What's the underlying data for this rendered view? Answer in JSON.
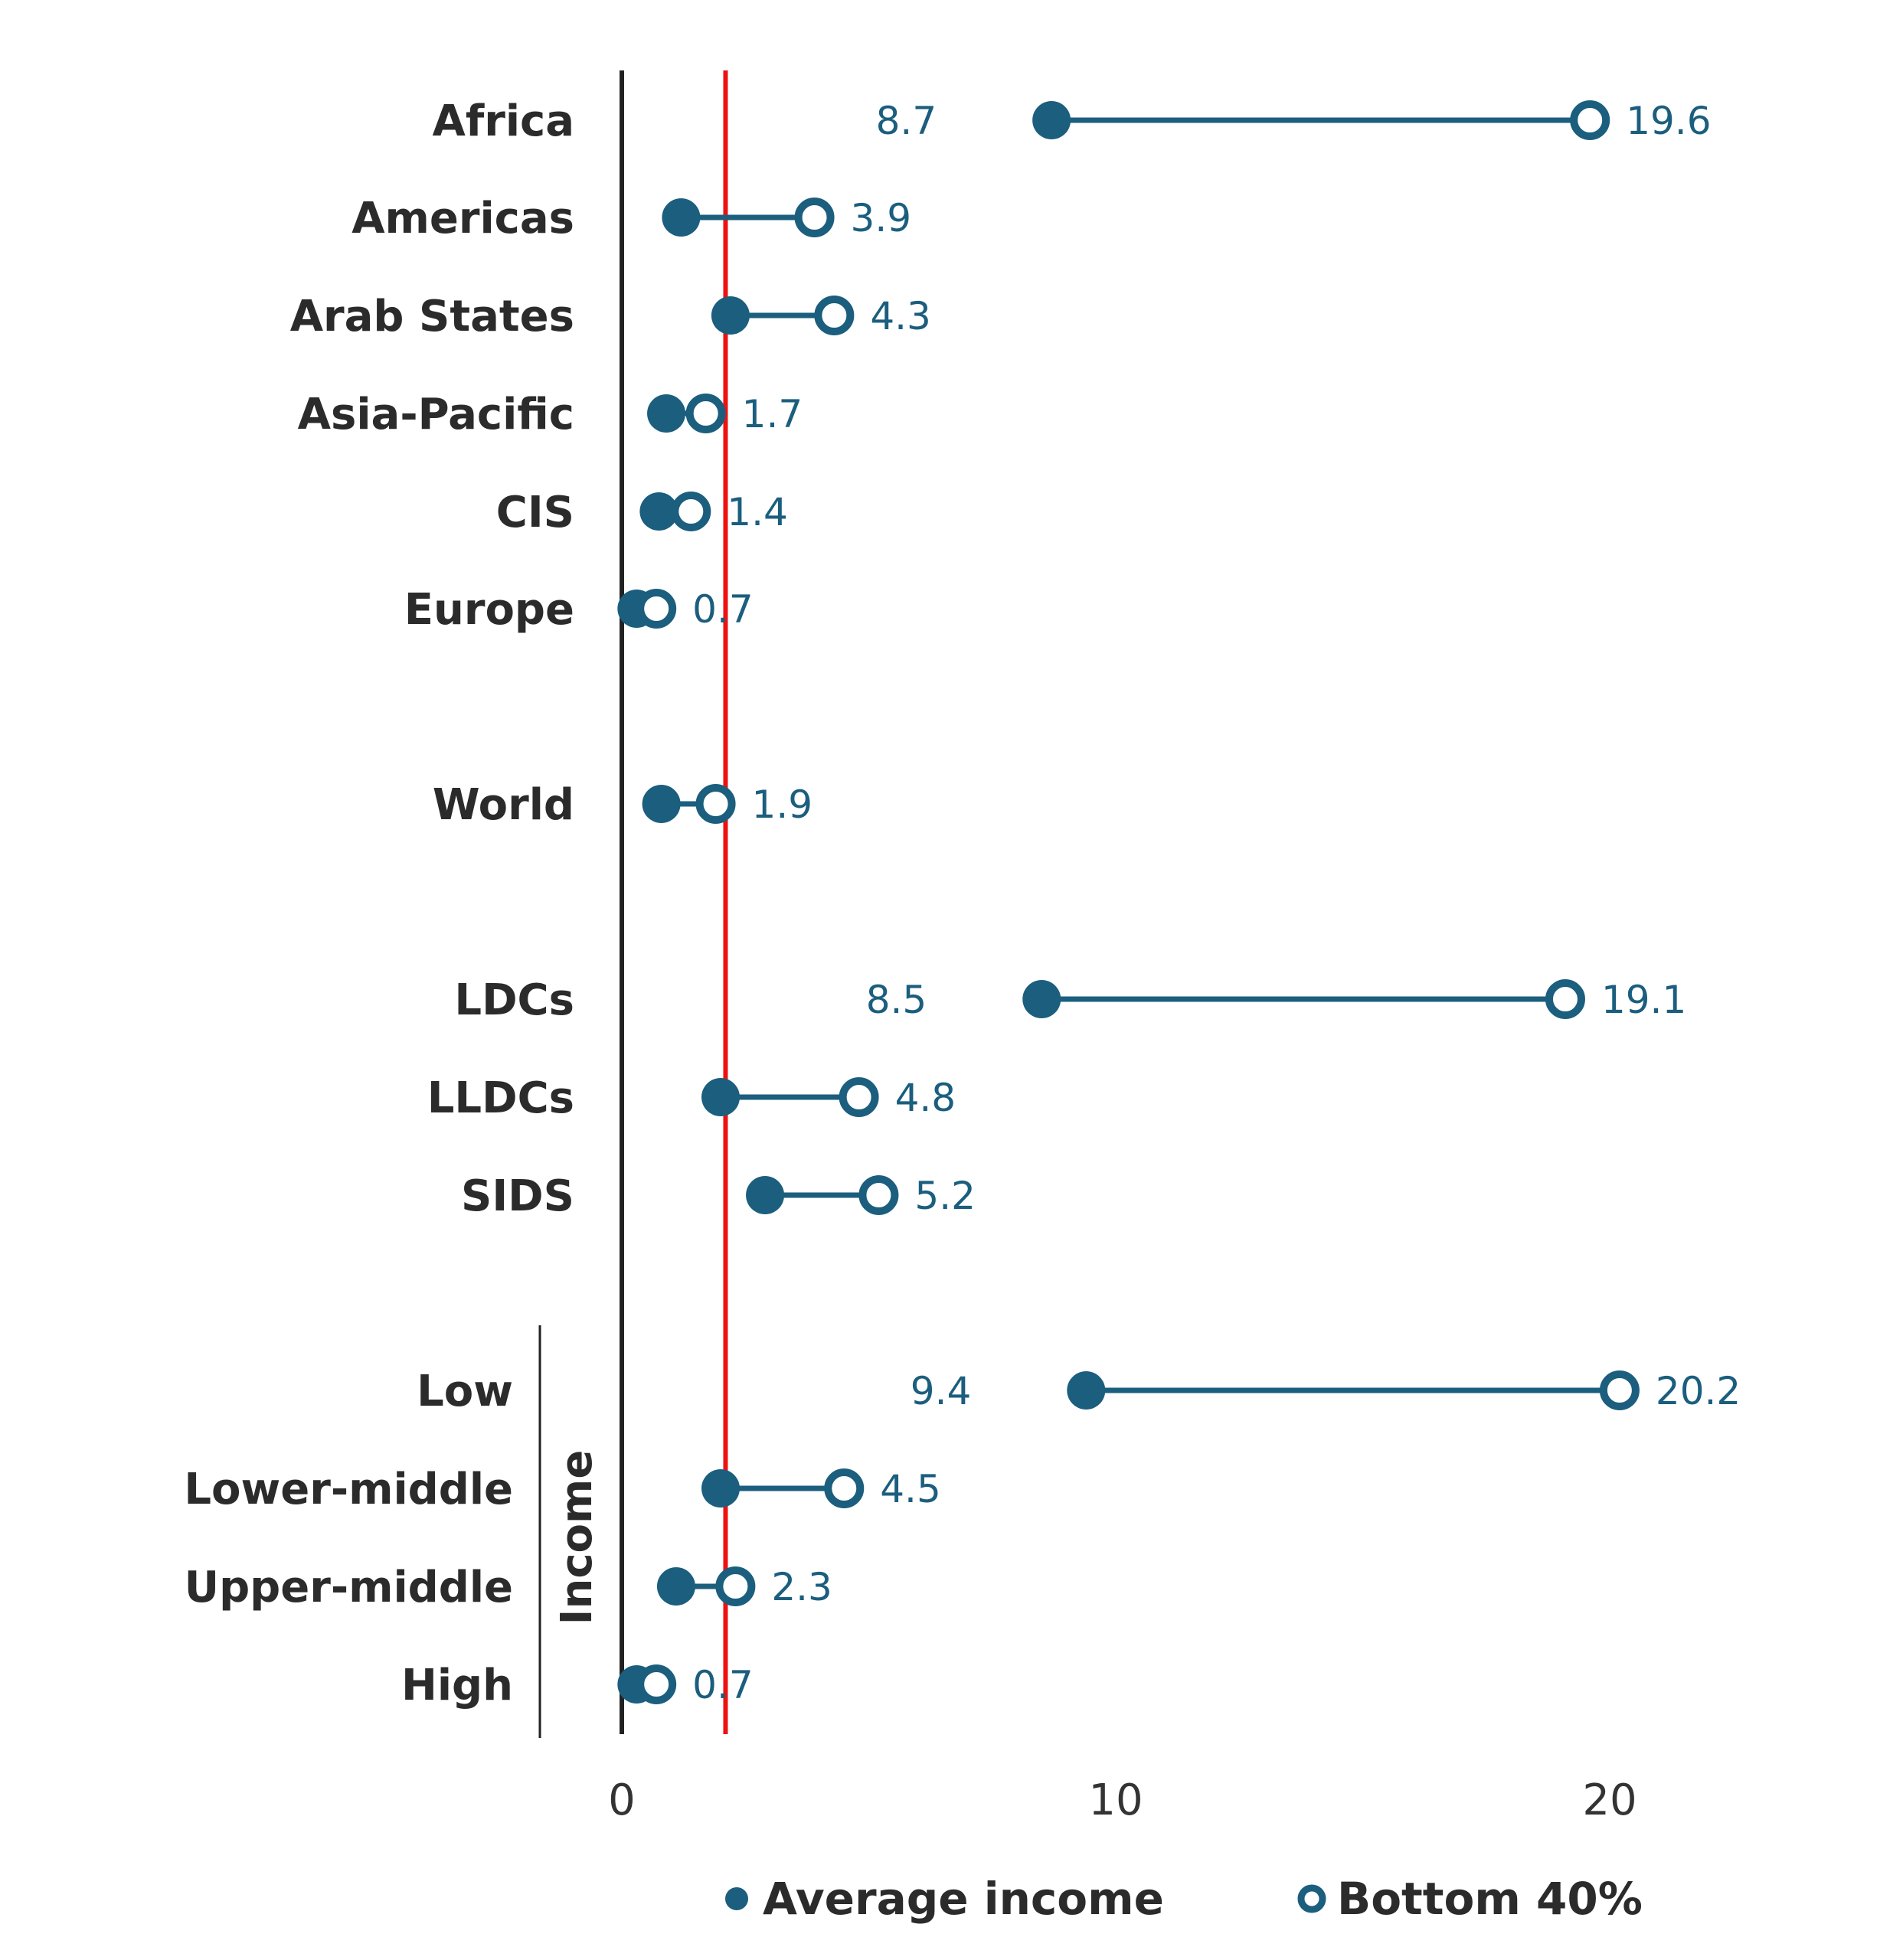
{
  "chart_data": {
    "type": "dumbbell",
    "xlim": [
      0,
      23
    ],
    "xticks": [
      "0",
      "10",
      "20"
    ],
    "xtick_values": [
      0,
      10,
      20
    ],
    "reference_line": 2.1,
    "colors": {
      "series": "#1b5e7e",
      "reference": "#ee1111",
      "axis": "#222222"
    },
    "rows": [
      {
        "label": "Africa",
        "avg": 8.7,
        "bottom40": 19.6,
        "avg_label": "8.7",
        "b40_label": "19.6"
      },
      {
        "label": "Americas",
        "avg": 1.2,
        "bottom40": 3.9,
        "avg_label": "",
        "b40_label": "3.9"
      },
      {
        "label": "Arab States",
        "avg": 2.2,
        "bottom40": 4.3,
        "avg_label": "",
        "b40_label": "4.3"
      },
      {
        "label": "Asia-Pacific",
        "avg": 0.9,
        "bottom40": 1.7,
        "avg_label": "",
        "b40_label": "1.7"
      },
      {
        "label": "CIS",
        "avg": 0.75,
        "bottom40": 1.4,
        "avg_label": "",
        "b40_label": "1.4"
      },
      {
        "label": "Europe",
        "avg": 0.3,
        "bottom40": 0.7,
        "avg_label": "",
        "b40_label": "0.7"
      },
      {
        "label": "World",
        "avg": 0.8,
        "bottom40": 1.9,
        "avg_label": "",
        "b40_label": "1.9"
      },
      {
        "label": "LDCs",
        "avg": 8.5,
        "bottom40": 19.1,
        "avg_label": "8.5",
        "b40_label": "19.1"
      },
      {
        "label": "LLDCs",
        "avg": 2.0,
        "bottom40": 4.8,
        "avg_label": "",
        "b40_label": "4.8"
      },
      {
        "label": "SIDS",
        "avg": 2.9,
        "bottom40": 5.2,
        "avg_label": "",
        "b40_label": "5.2"
      },
      {
        "label": "Low",
        "avg": 9.4,
        "bottom40": 20.2,
        "avg_label": "9.4",
        "b40_label": "20.2",
        "group": "income"
      },
      {
        "label": "Lower-middle",
        "avg": 2.0,
        "bottom40": 4.5,
        "avg_label": "",
        "b40_label": "4.5",
        "group": "income"
      },
      {
        "label": "Upper-middle",
        "avg": 1.1,
        "bottom40": 2.3,
        "avg_label": "",
        "b40_label": "2.3",
        "group": "income"
      },
      {
        "label": "High",
        "avg": 0.3,
        "bottom40": 0.7,
        "avg_label": "",
        "b40_label": "0.7",
        "group": "income"
      }
    ],
    "group_label": "Income",
    "legend": {
      "avg": "Average income",
      "bottom40": "Bottom 40%"
    }
  }
}
